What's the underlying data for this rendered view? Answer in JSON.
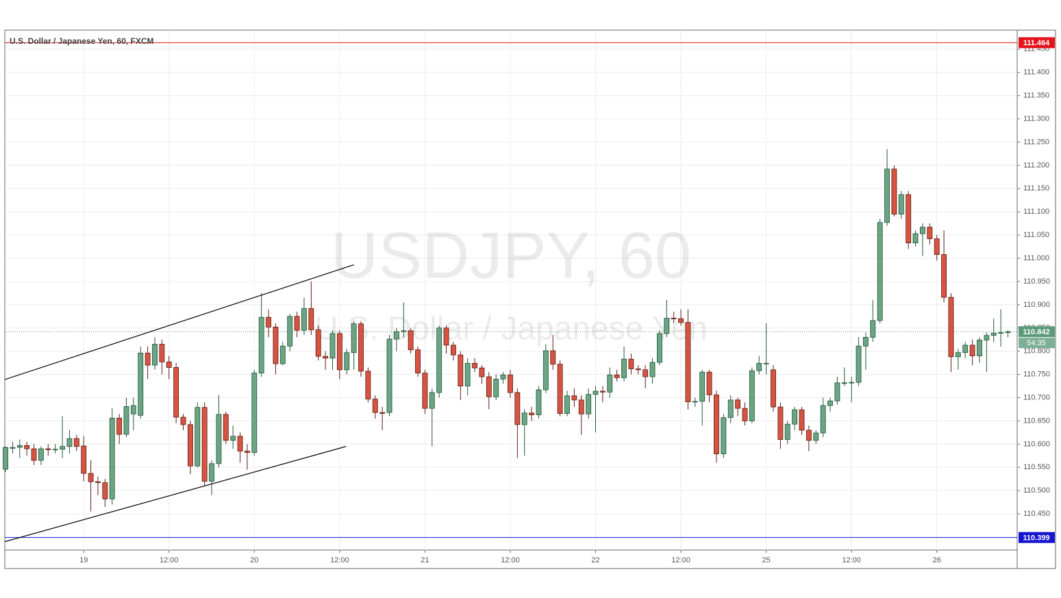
{
  "chart_data": {
    "type": "candlestick",
    "title": "U.S. Dollar / Japanese Yen, 60, FXCM",
    "watermark": "USDJPY, 60",
    "watermark_subtitle": "U.S. Dollar / Japanese Yen",
    "categories": [
      null,
      null,
      null,
      null,
      null,
      null,
      null,
      null,
      null,
      null,
      null,
      "19",
      null,
      null,
      null,
      null,
      null,
      null,
      null,
      null,
      null,
      null,
      null,
      "12:00",
      null,
      null,
      null,
      null,
      null,
      null,
      null,
      null,
      null,
      null,
      null,
      "20",
      null,
      null,
      null,
      null,
      null,
      null,
      null,
      null,
      null,
      null,
      null,
      "12:00",
      null,
      null,
      null,
      null,
      null,
      null,
      null,
      null,
      null,
      null,
      null,
      "21",
      null,
      null,
      null,
      null,
      null,
      null,
      null,
      null,
      null,
      null,
      null,
      "12:00",
      null,
      null,
      null,
      null,
      null,
      null,
      null,
      null,
      null,
      null,
      null,
      "22",
      null,
      null,
      null,
      null,
      null,
      null,
      null,
      null,
      null,
      null,
      null,
      "12:00",
      null,
      null,
      null,
      null,
      null,
      null,
      null,
      null,
      null,
      null,
      null,
      "25",
      null,
      null,
      null,
      null,
      null,
      null,
      null,
      null,
      null,
      null,
      null,
      "12:00",
      null,
      null,
      null,
      null,
      null,
      null,
      null,
      null,
      null,
      null,
      null,
      "26",
      null,
      null,
      null,
      null,
      null,
      null,
      null,
      null,
      null,
      null
    ],
    "open": [
      110.546,
      110.591,
      110.593,
      110.597,
      110.59,
      110.565,
      110.59,
      110.588,
      110.589,
      110.595,
      110.612,
      110.596,
      110.537,
      110.519,
      110.517,
      110.482,
      110.656,
      110.621,
      110.665,
      110.662,
      110.796,
      110.77,
      110.815,
      110.777,
      110.765,
      110.658,
      110.642,
      110.553,
      110.679,
      110.52,
      110.558,
      110.664,
      110.608,
      110.617,
      110.585,
      110.582,
      110.753,
      110.873,
      110.852,
      110.773,
      110.811,
      110.875,
      110.845,
      110.892,
      110.846,
      110.789,
      110.785,
      110.838,
      110.76,
      110.797,
      110.859,
      110.757,
      110.697,
      110.668,
      110.668,
      110.826,
      110.842,
      110.844,
      110.803,
      110.753,
      110.677,
      110.711,
      110.85,
      110.813,
      110.792,
      110.725,
      110.774,
      110.764,
      110.745,
      110.702,
      110.74,
      110.749,
      110.711,
      110.642,
      110.667,
      110.663,
      110.717,
      110.801,
      110.772,
      110.666,
      110.704,
      110.695,
      110.665,
      110.707,
      110.714,
      110.712,
      110.749,
      110.743,
      110.783,
      110.762,
      110.76,
      110.745,
      110.776,
      110.838,
      110.871,
      110.87,
      110.862,
      110.691,
      110.692,
      110.755,
      110.706,
      110.579,
      110.657,
      110.695,
      110.677,
      110.65,
      110.758,
      110.774,
      110.76,
      110.68,
      110.61,
      110.643,
      110.674,
      110.63,
      110.608,
      110.624,
      110.683,
      110.693,
      110.732,
      110.732,
      110.733,
      110.811,
      110.83,
      110.866,
      111.077,
      111.192,
      111.095,
      111.137,
      111.033,
      111.053,
      111.067,
      111.042,
      111.008,
      110.916,
      110.788,
      110.797,
      110.813,
      110.79,
      110.824,
      110.834,
      110.839,
      110.84
    ],
    "high": [
      110.595,
      110.605,
      110.61,
      110.605,
      110.6,
      110.595,
      110.6,
      110.6,
      110.66,
      110.63,
      110.62,
      110.617,
      110.565,
      110.53,
      110.525,
      110.677,
      110.665,
      110.7,
      110.7,
      110.81,
      110.81,
      110.83,
      110.825,
      110.79,
      110.775,
      110.665,
      110.65,
      110.69,
      110.69,
      110.565,
      110.705,
      110.67,
      110.64,
      110.625,
      110.6,
      110.76,
      110.925,
      110.89,
      110.86,
      110.82,
      110.88,
      110.885,
      110.915,
      110.95,
      110.855,
      110.8,
      110.845,
      110.845,
      110.805,
      110.865,
      110.865,
      110.765,
      110.705,
      110.68,
      110.835,
      110.85,
      110.905,
      110.85,
      110.81,
      110.76,
      110.72,
      110.855,
      110.855,
      110.82,
      110.8,
      110.785,
      110.785,
      110.77,
      110.755,
      110.75,
      110.755,
      110.76,
      110.72,
      110.675,
      110.68,
      110.725,
      110.815,
      110.835,
      110.78,
      110.715,
      110.72,
      110.705,
      110.72,
      110.725,
      110.725,
      110.765,
      110.76,
      110.81,
      110.795,
      110.77,
      110.77,
      110.785,
      110.845,
      110.91,
      110.885,
      110.89,
      110.89,
      110.7,
      110.76,
      110.76,
      110.715,
      110.665,
      110.705,
      110.7,
      110.69,
      110.765,
      110.79,
      110.86,
      110.77,
      110.69,
      110.65,
      110.68,
      110.68,
      110.64,
      110.63,
      110.7,
      110.7,
      110.745,
      110.765,
      110.745,
      110.83,
      110.84,
      110.91,
      111.085,
      111.235,
      111.2,
      111.145,
      111.145,
      111.06,
      111.075,
      111.075,
      111.05,
      111.06,
      110.925,
      110.805,
      110.82,
      110.825,
      110.83,
      110.84,
      110.87,
      110.89,
      110.845
    ],
    "low": [
      110.54,
      110.58,
      110.57,
      110.575,
      110.555,
      110.555,
      110.575,
      110.58,
      110.57,
      110.58,
      110.585,
      110.52,
      110.455,
      110.49,
      110.465,
      110.47,
      110.6,
      110.615,
      110.63,
      110.655,
      110.74,
      110.76,
      110.75,
      110.74,
      110.645,
      110.63,
      110.535,
      110.55,
      110.51,
      110.49,
      110.55,
      110.6,
      110.59,
      110.56,
      110.545,
      110.575,
      110.745,
      110.83,
      110.75,
      110.77,
      110.8,
      110.83,
      110.835,
      110.835,
      110.78,
      110.76,
      110.76,
      110.74,
      110.75,
      110.76,
      110.745,
      110.69,
      110.655,
      110.63,
      110.66,
      110.8,
      110.83,
      110.795,
      110.745,
      110.665,
      110.595,
      110.7,
      110.795,
      110.78,
      110.695,
      110.705,
      110.755,
      110.73,
      110.675,
      110.695,
      110.73,
      110.7,
      110.57,
      110.575,
      110.65,
      110.655,
      110.71,
      110.76,
      110.66,
      110.66,
      110.68,
      110.62,
      110.655,
      110.625,
      110.69,
      110.7,
      110.735,
      110.735,
      110.75,
      110.75,
      110.72,
      110.73,
      110.77,
      110.83,
      110.86,
      110.855,
      110.675,
      110.68,
      110.64,
      110.69,
      110.56,
      110.57,
      110.645,
      110.66,
      110.64,
      110.645,
      110.75,
      110.75,
      110.67,
      110.59,
      110.6,
      110.63,
      110.62,
      110.585,
      110.6,
      110.615,
      110.67,
      110.685,
      110.725,
      110.69,
      110.725,
      110.76,
      110.82,
      110.86,
      111.07,
      111.09,
      111.085,
      111.02,
      111.025,
      111.005,
      111.03,
      110.995,
      110.905,
      110.755,
      110.76,
      110.785,
      110.77,
      110.775,
      110.755,
      110.82,
      110.81,
      110.83
    ],
    "close": [
      110.593,
      110.593,
      110.597,
      110.59,
      110.565,
      110.59,
      110.588,
      110.589,
      110.595,
      110.612,
      110.595,
      110.537,
      110.519,
      110.517,
      110.482,
      110.656,
      110.621,
      110.681,
      110.683,
      110.796,
      110.77,
      110.815,
      110.777,
      110.765,
      110.658,
      110.642,
      110.553,
      110.679,
      110.52,
      110.558,
      110.664,
      110.608,
      110.617,
      110.585,
      110.582,
      110.753,
      110.873,
      110.852,
      110.773,
      110.811,
      110.875,
      110.845,
      110.892,
      110.846,
      110.789,
      110.785,
      110.838,
      110.76,
      110.797,
      110.859,
      110.757,
      110.697,
      110.668,
      110.666,
      110.826,
      110.842,
      110.844,
      110.803,
      110.753,
      110.677,
      110.711,
      110.85,
      110.813,
      110.792,
      110.725,
      110.774,
      110.764,
      110.745,
      110.702,
      110.74,
      110.749,
      110.711,
      110.642,
      110.667,
      110.663,
      110.717,
      110.801,
      110.772,
      110.666,
      110.704,
      110.695,
      110.665,
      110.707,
      110.714,
      110.712,
      110.749,
      110.743,
      110.783,
      110.762,
      110.76,
      110.745,
      110.776,
      110.838,
      110.871,
      110.87,
      110.862,
      110.691,
      110.692,
      110.755,
      110.706,
      110.579,
      110.657,
      110.695,
      110.677,
      110.65,
      110.758,
      110.774,
      110.774,
      110.68,
      110.61,
      110.643,
      110.674,
      110.63,
      110.608,
      110.624,
      110.683,
      110.693,
      110.732,
      110.732,
      110.733,
      110.811,
      110.83,
      110.866,
      111.077,
      111.192,
      111.095,
      111.137,
      111.033,
      111.053,
      111.067,
      111.042,
      111.008,
      110.916,
      110.788,
      110.797,
      110.813,
      110.79,
      110.824,
      110.834,
      110.839,
      110.84,
      110.842
    ],
    "up_color": "#6ba583",
    "down_color": "#d75442",
    "ylim": [
      110.372,
      111.491
    ],
    "xlim": [
      -0.1,
      142.3
    ],
    "yticks": [
      {
        "value": 110.45,
        "label": "110.450"
      },
      {
        "value": 110.5,
        "label": "110.500"
      },
      {
        "value": 110.55,
        "label": "110.550"
      },
      {
        "value": 110.6,
        "label": "110.600"
      },
      {
        "value": 110.65,
        "label": "110.650"
      },
      {
        "value": 110.7,
        "label": "110.700"
      },
      {
        "value": 110.75,
        "label": "110.750"
      },
      {
        "value": 110.8,
        "label": "110.800"
      },
      {
        "value": 110.85,
        "label": "110.850"
      },
      {
        "value": 110.9,
        "label": "110.900"
      },
      {
        "value": 110.95,
        "label": "110.950"
      },
      {
        "value": 111.0,
        "label": "111.000"
      },
      {
        "value": 111.05,
        "label": "111.050"
      },
      {
        "value": 111.1,
        "label": "111.100"
      },
      {
        "value": 111.15,
        "label": "111.150"
      },
      {
        "value": 111.2,
        "label": "111.200"
      },
      {
        "value": 111.25,
        "label": "111.250"
      },
      {
        "value": 111.3,
        "label": "111.300"
      },
      {
        "value": 111.35,
        "label": "111.350"
      },
      {
        "value": 111.4,
        "label": "111.400"
      },
      {
        "value": 111.45,
        "label": "111.450"
      }
    ],
    "grid": true,
    "levels": [
      {
        "value": 111.464,
        "color": "#e5141c"
      },
      {
        "value": 110.399,
        "color": "#1515d0"
      }
    ],
    "last_price": {
      "value": 110.842,
      "color": "#5b9b79",
      "countdown": "54:35"
    },
    "trendlines": [
      {
        "x": [
          -0.1,
          49
        ],
        "y": [
          110.739,
          110.986
        ]
      },
      {
        "x": [
          -0.1,
          47.9
        ],
        "y": [
          110.39,
          110.595
        ]
      }
    ]
  }
}
